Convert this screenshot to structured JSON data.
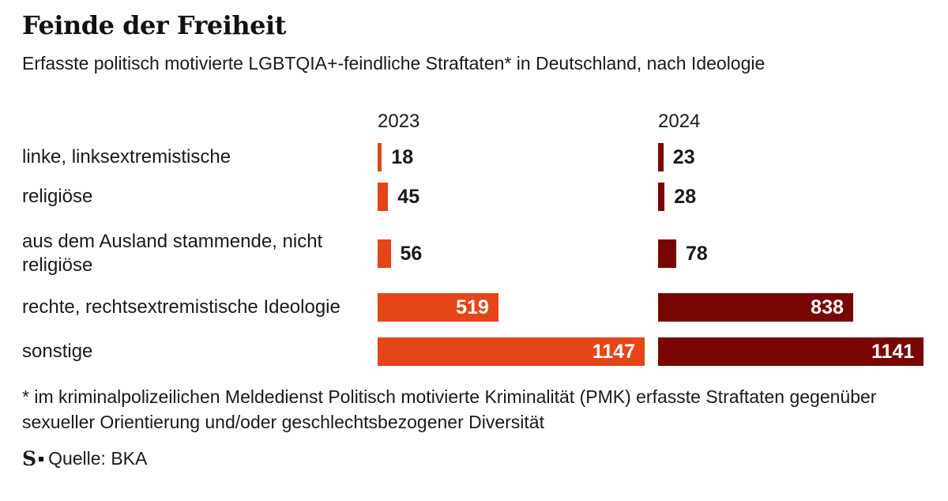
{
  "header": {
    "title": "Feinde der Freiheit",
    "subtitle": "Erfasste politisch motivierte LGBTQIA+-feindliche Straftaten* in Deutschland, nach Ideologie"
  },
  "chart_data": {
    "type": "bar",
    "orientation": "horizontal",
    "title": "Feinde der Freiheit",
    "subtitle": "Erfasste politisch motivierte LGBTQIA+-feindliche Straftaten* in Deutschland, nach Ideologie",
    "categories": [
      "linke, linksextremistische",
      "religiöse",
      "aus dem Ausland stammende, nicht religiöse",
      "rechte, rechtsextremistische Ideologie",
      "sonstige"
    ],
    "series": [
      {
        "name": "2023",
        "color": "#E54517",
        "values": [
          18,
          45,
          56,
          519,
          1147
        ]
      },
      {
        "name": "2024",
        "color": "#7A0604",
        "values": [
          23,
          28,
          78,
          838,
          1141
        ]
      }
    ],
    "value_labels": true,
    "xlim": [
      0,
      1147
    ],
    "grid": false,
    "legend_position": "column-headers"
  },
  "footnote": {
    "line1": "* im kriminalpolizeilichen Meldedienst Politisch motivierte Kriminalität (PMK) erfasste Straftaten gegenüber",
    "line2": "sexueller Orientierung und/oder geschlechtsbezogener Diversität"
  },
  "source": {
    "logo": "S",
    "label": "Quelle: BKA"
  }
}
